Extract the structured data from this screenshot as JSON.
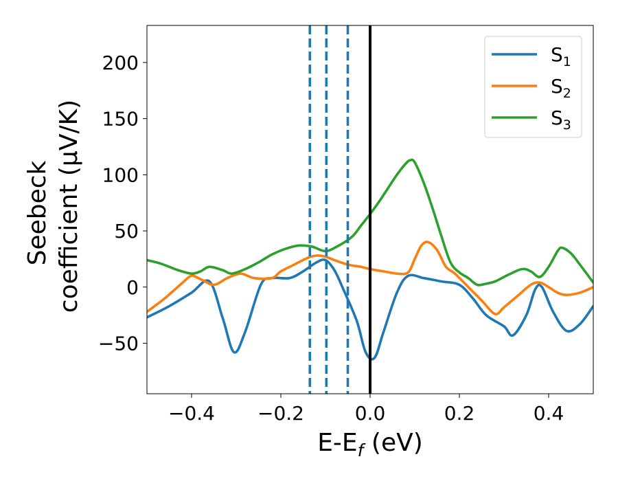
{
  "chart_data": {
    "type": "line",
    "title": "",
    "xlabel": {
      "main": "E-E",
      "sub": "f",
      "rest": " (eV)"
    },
    "ylabel": {
      "line1": "Seebeck",
      "line2": "coefficient  (μV/K)"
    },
    "xlim": [
      -0.5,
      0.5
    ],
    "ylim": [
      -95,
      233
    ],
    "xticks": [
      {
        "value": -0.4,
        "label": "−0.4"
      },
      {
        "value": -0.2,
        "label": "−0.2"
      },
      {
        "value": 0.0,
        "label": "0.0"
      },
      {
        "value": 0.2,
        "label": "0.2"
      },
      {
        "value": 0.4,
        "label": "0.4"
      }
    ],
    "yticks": [
      {
        "value": -50,
        "label": "−50"
      },
      {
        "value": 0,
        "label": "0"
      },
      {
        "value": 50,
        "label": "50"
      },
      {
        "value": 100,
        "label": "100"
      },
      {
        "value": 150,
        "label": "150"
      },
      {
        "value": 200,
        "label": "200"
      }
    ],
    "grid": false,
    "legend_position": "top-right",
    "vlines": [
      {
        "x": -0.135,
        "style": "dashed",
        "color": "#1f77b4"
      },
      {
        "x": -0.098,
        "style": "dashed",
        "color": "#1f77b4"
      },
      {
        "x": -0.05,
        "style": "dashed",
        "color": "#1f77b4"
      },
      {
        "x": 0.0,
        "style": "solid",
        "color": "#000000"
      }
    ],
    "series": [
      {
        "name": "S",
        "subscript": "1",
        "color": "#1f77b4",
        "points": [
          [
            -0.5,
            -27
          ],
          [
            -0.45,
            -17
          ],
          [
            -0.4,
            -5
          ],
          [
            -0.36,
            5
          ],
          [
            -0.33,
            -28
          ],
          [
            -0.305,
            -58
          ],
          [
            -0.28,
            -40
          ],
          [
            -0.245,
            2
          ],
          [
            -0.22,
            8
          ],
          [
            -0.18,
            8
          ],
          [
            -0.15,
            14
          ],
          [
            -0.12,
            22
          ],
          [
            -0.1,
            24
          ],
          [
            -0.08,
            15
          ],
          [
            -0.06,
            -2
          ],
          [
            -0.03,
            -30
          ],
          [
            -0.01,
            -58
          ],
          [
            0.01,
            -63
          ],
          [
            0.03,
            -40
          ],
          [
            0.06,
            -5
          ],
          [
            0.085,
            10
          ],
          [
            0.12,
            8
          ],
          [
            0.16,
            5
          ],
          [
            0.2,
            2
          ],
          [
            0.23,
            -10
          ],
          [
            0.26,
            -25
          ],
          [
            0.3,
            -35
          ],
          [
            0.32,
            -43
          ],
          [
            0.35,
            -25
          ],
          [
            0.37,
            -2
          ],
          [
            0.385,
            0
          ],
          [
            0.41,
            -22
          ],
          [
            0.44,
            -39
          ],
          [
            0.47,
            -33
          ],
          [
            0.5,
            -17
          ]
        ]
      },
      {
        "name": "S",
        "subscript": "2",
        "color": "#ff7f0e",
        "points": [
          [
            -0.5,
            -22
          ],
          [
            -0.46,
            -10
          ],
          [
            -0.42,
            4
          ],
          [
            -0.4,
            10
          ],
          [
            -0.38,
            7
          ],
          [
            -0.35,
            2
          ],
          [
            -0.32,
            8
          ],
          [
            -0.29,
            12
          ],
          [
            -0.26,
            8
          ],
          [
            -0.22,
            8
          ],
          [
            -0.2,
            14
          ],
          [
            -0.17,
            20
          ],
          [
            -0.14,
            26
          ],
          [
            -0.12,
            28
          ],
          [
            -0.1,
            27
          ],
          [
            -0.08,
            24
          ],
          [
            -0.05,
            20
          ],
          [
            -0.02,
            18
          ],
          [
            0.0,
            16
          ],
          [
            0.03,
            14
          ],
          [
            0.06,
            12
          ],
          [
            0.085,
            13
          ],
          [
            0.1,
            25
          ],
          [
            0.115,
            37
          ],
          [
            0.13,
            40
          ],
          [
            0.15,
            33
          ],
          [
            0.17,
            18
          ],
          [
            0.19,
            12
          ],
          [
            0.22,
            0
          ],
          [
            0.25,
            -12
          ],
          [
            0.28,
            -24
          ],
          [
            0.3,
            -18
          ],
          [
            0.33,
            -8
          ],
          [
            0.36,
            2
          ],
          [
            0.38,
            4
          ],
          [
            0.4,
            0
          ],
          [
            0.42,
            -5
          ],
          [
            0.44,
            -7
          ],
          [
            0.47,
            -5
          ],
          [
            0.5,
            0
          ]
        ]
      },
      {
        "name": "S",
        "subscript": "3",
        "color": "#2ca02c",
        "points": [
          [
            -0.5,
            24
          ],
          [
            -0.47,
            21
          ],
          [
            -0.43,
            15
          ],
          [
            -0.4,
            12
          ],
          [
            -0.38,
            14
          ],
          [
            -0.36,
            18
          ],
          [
            -0.33,
            15
          ],
          [
            -0.31,
            12
          ],
          [
            -0.28,
            16
          ],
          [
            -0.25,
            22
          ],
          [
            -0.22,
            29
          ],
          [
            -0.19,
            34
          ],
          [
            -0.16,
            37
          ],
          [
            -0.13,
            36
          ],
          [
            -0.1,
            32
          ],
          [
            -0.07,
            37
          ],
          [
            -0.04,
            45
          ],
          [
            -0.02,
            55
          ],
          [
            0.0,
            65
          ],
          [
            0.02,
            76
          ],
          [
            0.04,
            88
          ],
          [
            0.06,
            100
          ],
          [
            0.08,
            110
          ],
          [
            0.09,
            113
          ],
          [
            0.1,
            111
          ],
          [
            0.12,
            93
          ],
          [
            0.14,
            70
          ],
          [
            0.16,
            45
          ],
          [
            0.18,
            22
          ],
          [
            0.2,
            13
          ],
          [
            0.22,
            8
          ],
          [
            0.24,
            2
          ],
          [
            0.26,
            3
          ],
          [
            0.28,
            5
          ],
          [
            0.31,
            11
          ],
          [
            0.34,
            16
          ],
          [
            0.36,
            14
          ],
          [
            0.38,
            9
          ],
          [
            0.4,
            18
          ],
          [
            0.42,
            32
          ],
          [
            0.43,
            35
          ],
          [
            0.45,
            30
          ],
          [
            0.47,
            20
          ],
          [
            0.5,
            4
          ]
        ]
      }
    ]
  }
}
